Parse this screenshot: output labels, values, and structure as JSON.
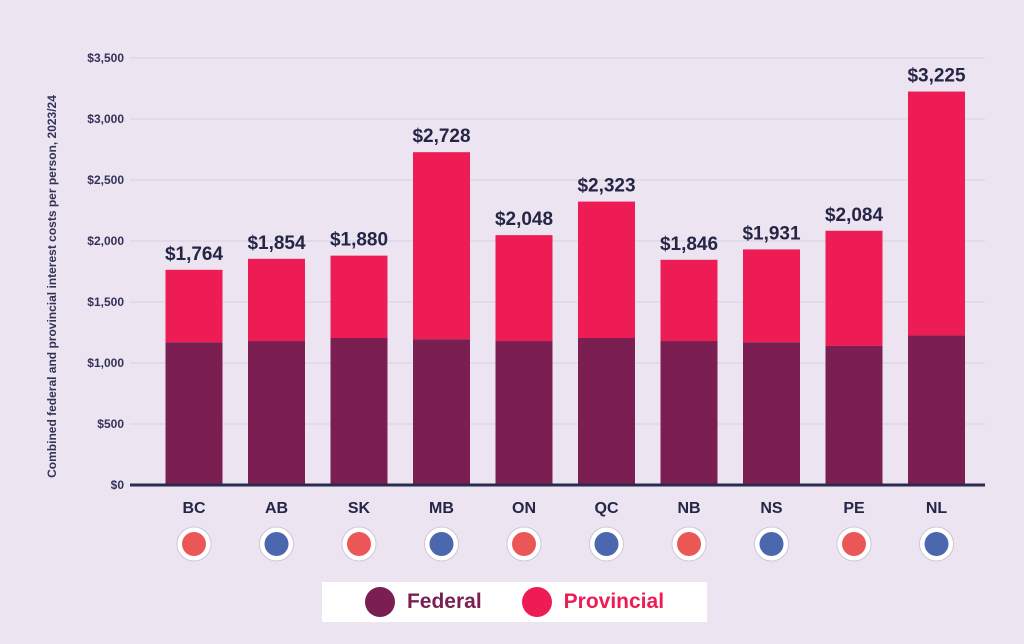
{
  "chart_data": {
    "type": "bar",
    "stacked": true,
    "ylabel": "Combined federal and provincial interest costs per person, 2023/24",
    "ylim": [
      0,
      3500
    ],
    "yticks": [
      "$0",
      "$500",
      "$1,000",
      "$1,500",
      "$2,000",
      "$2,500",
      "$3,000",
      "$3,500"
    ],
    "ytick_values": [
      0,
      500,
      1000,
      1500,
      2000,
      2500,
      3000,
      3500
    ],
    "grid": true,
    "categories": [
      "BC",
      "AB",
      "SK",
      "MB",
      "ON",
      "QC",
      "NB",
      "NS",
      "PE",
      "NL"
    ],
    "totals_labels": [
      "$1,764",
      "$1,854",
      "$1,880",
      "$2,728",
      "$2,048",
      "$2,323",
      "$1,846",
      "$1,931",
      "$2,084",
      "$3,225"
    ],
    "totals": [
      1764,
      1854,
      1880,
      2728,
      2048,
      2323,
      1846,
      1931,
      2084,
      3225
    ],
    "series": [
      {
        "name": "Federal",
        "color": "#7b1f52",
        "values": [
          1170,
          1180,
          1205,
          1195,
          1180,
          1205,
          1180,
          1170,
          1140,
          1225
        ]
      },
      {
        "name": "Provincial",
        "color": "#ee1c55",
        "values": [
          594,
          674,
          675,
          1533,
          868,
          1118,
          666,
          761,
          944,
          2000
        ]
      }
    ],
    "legend_position": "bottom"
  },
  "flags": [
    "bc-flag-icon",
    "ab-flag-icon",
    "sk-flag-icon",
    "mb-flag-icon",
    "on-flag-icon",
    "qc-flag-icon",
    "nb-flag-icon",
    "ns-flag-icon",
    "pe-flag-icon",
    "nl-flag-icon"
  ],
  "legend": {
    "federal": "Federal",
    "provincial": "Provincial"
  }
}
